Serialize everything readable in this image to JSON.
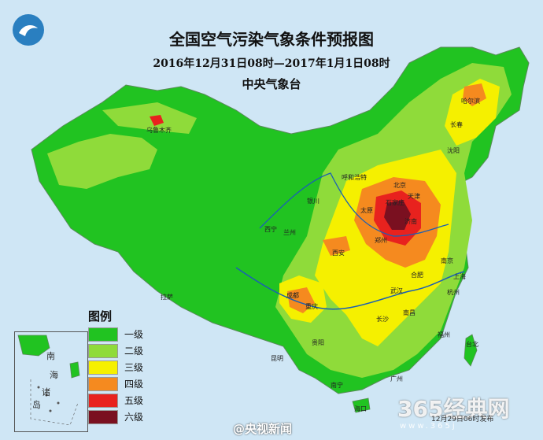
{
  "title": "全国空气污染气象条件预报图",
  "period": "2016年12月31日08时—2017年1月1日08时",
  "publisher": "中央气象台",
  "legend": {
    "title": "图例",
    "items": [
      {
        "label": "一级",
        "color": "#21c321"
      },
      {
        "label": "二级",
        "color": "#8fdb3a"
      },
      {
        "label": "三级",
        "color": "#f5f000"
      },
      {
        "label": "四级",
        "color": "#f58a1f"
      },
      {
        "label": "五级",
        "color": "#e8221e"
      },
      {
        "label": "六级",
        "color": "#7a1020"
      }
    ]
  },
  "inset": {
    "labels": [
      "南",
      "海",
      "诸",
      "岛"
    ]
  },
  "cities": [
    "乌鲁木齐",
    "哈尔滨",
    "长春",
    "沈阳",
    "北京",
    "天津",
    "太原",
    "济南",
    "石家庄",
    "郑州",
    "西安",
    "呼和浩特",
    "银川",
    "兰州",
    "西宁",
    "成都",
    "重庆",
    "武汉",
    "合肥",
    "南京",
    "上海",
    "杭州",
    "长沙",
    "南昌",
    "福州",
    "台北",
    "广州",
    "南宁",
    "昆明",
    "贵阳",
    "拉萨",
    "海口"
  ],
  "watermarks": {
    "weibo": "@央视新闻",
    "site": "365经典网",
    "url": "www.365j",
    "issue": "12月29日06时发布"
  }
}
